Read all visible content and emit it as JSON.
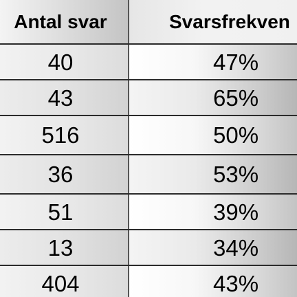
{
  "table": {
    "headers": [
      "Antal svar",
      "Svarsfrekven"
    ],
    "rows": [
      [
        "40",
        "47%"
      ],
      [
        "43",
        "65%"
      ],
      [
        "516",
        "50%"
      ],
      [
        "36",
        "53%"
      ],
      [
        "51",
        "39%"
      ],
      [
        "13",
        "34%"
      ],
      [
        "404",
        "43%"
      ]
    ]
  }
}
